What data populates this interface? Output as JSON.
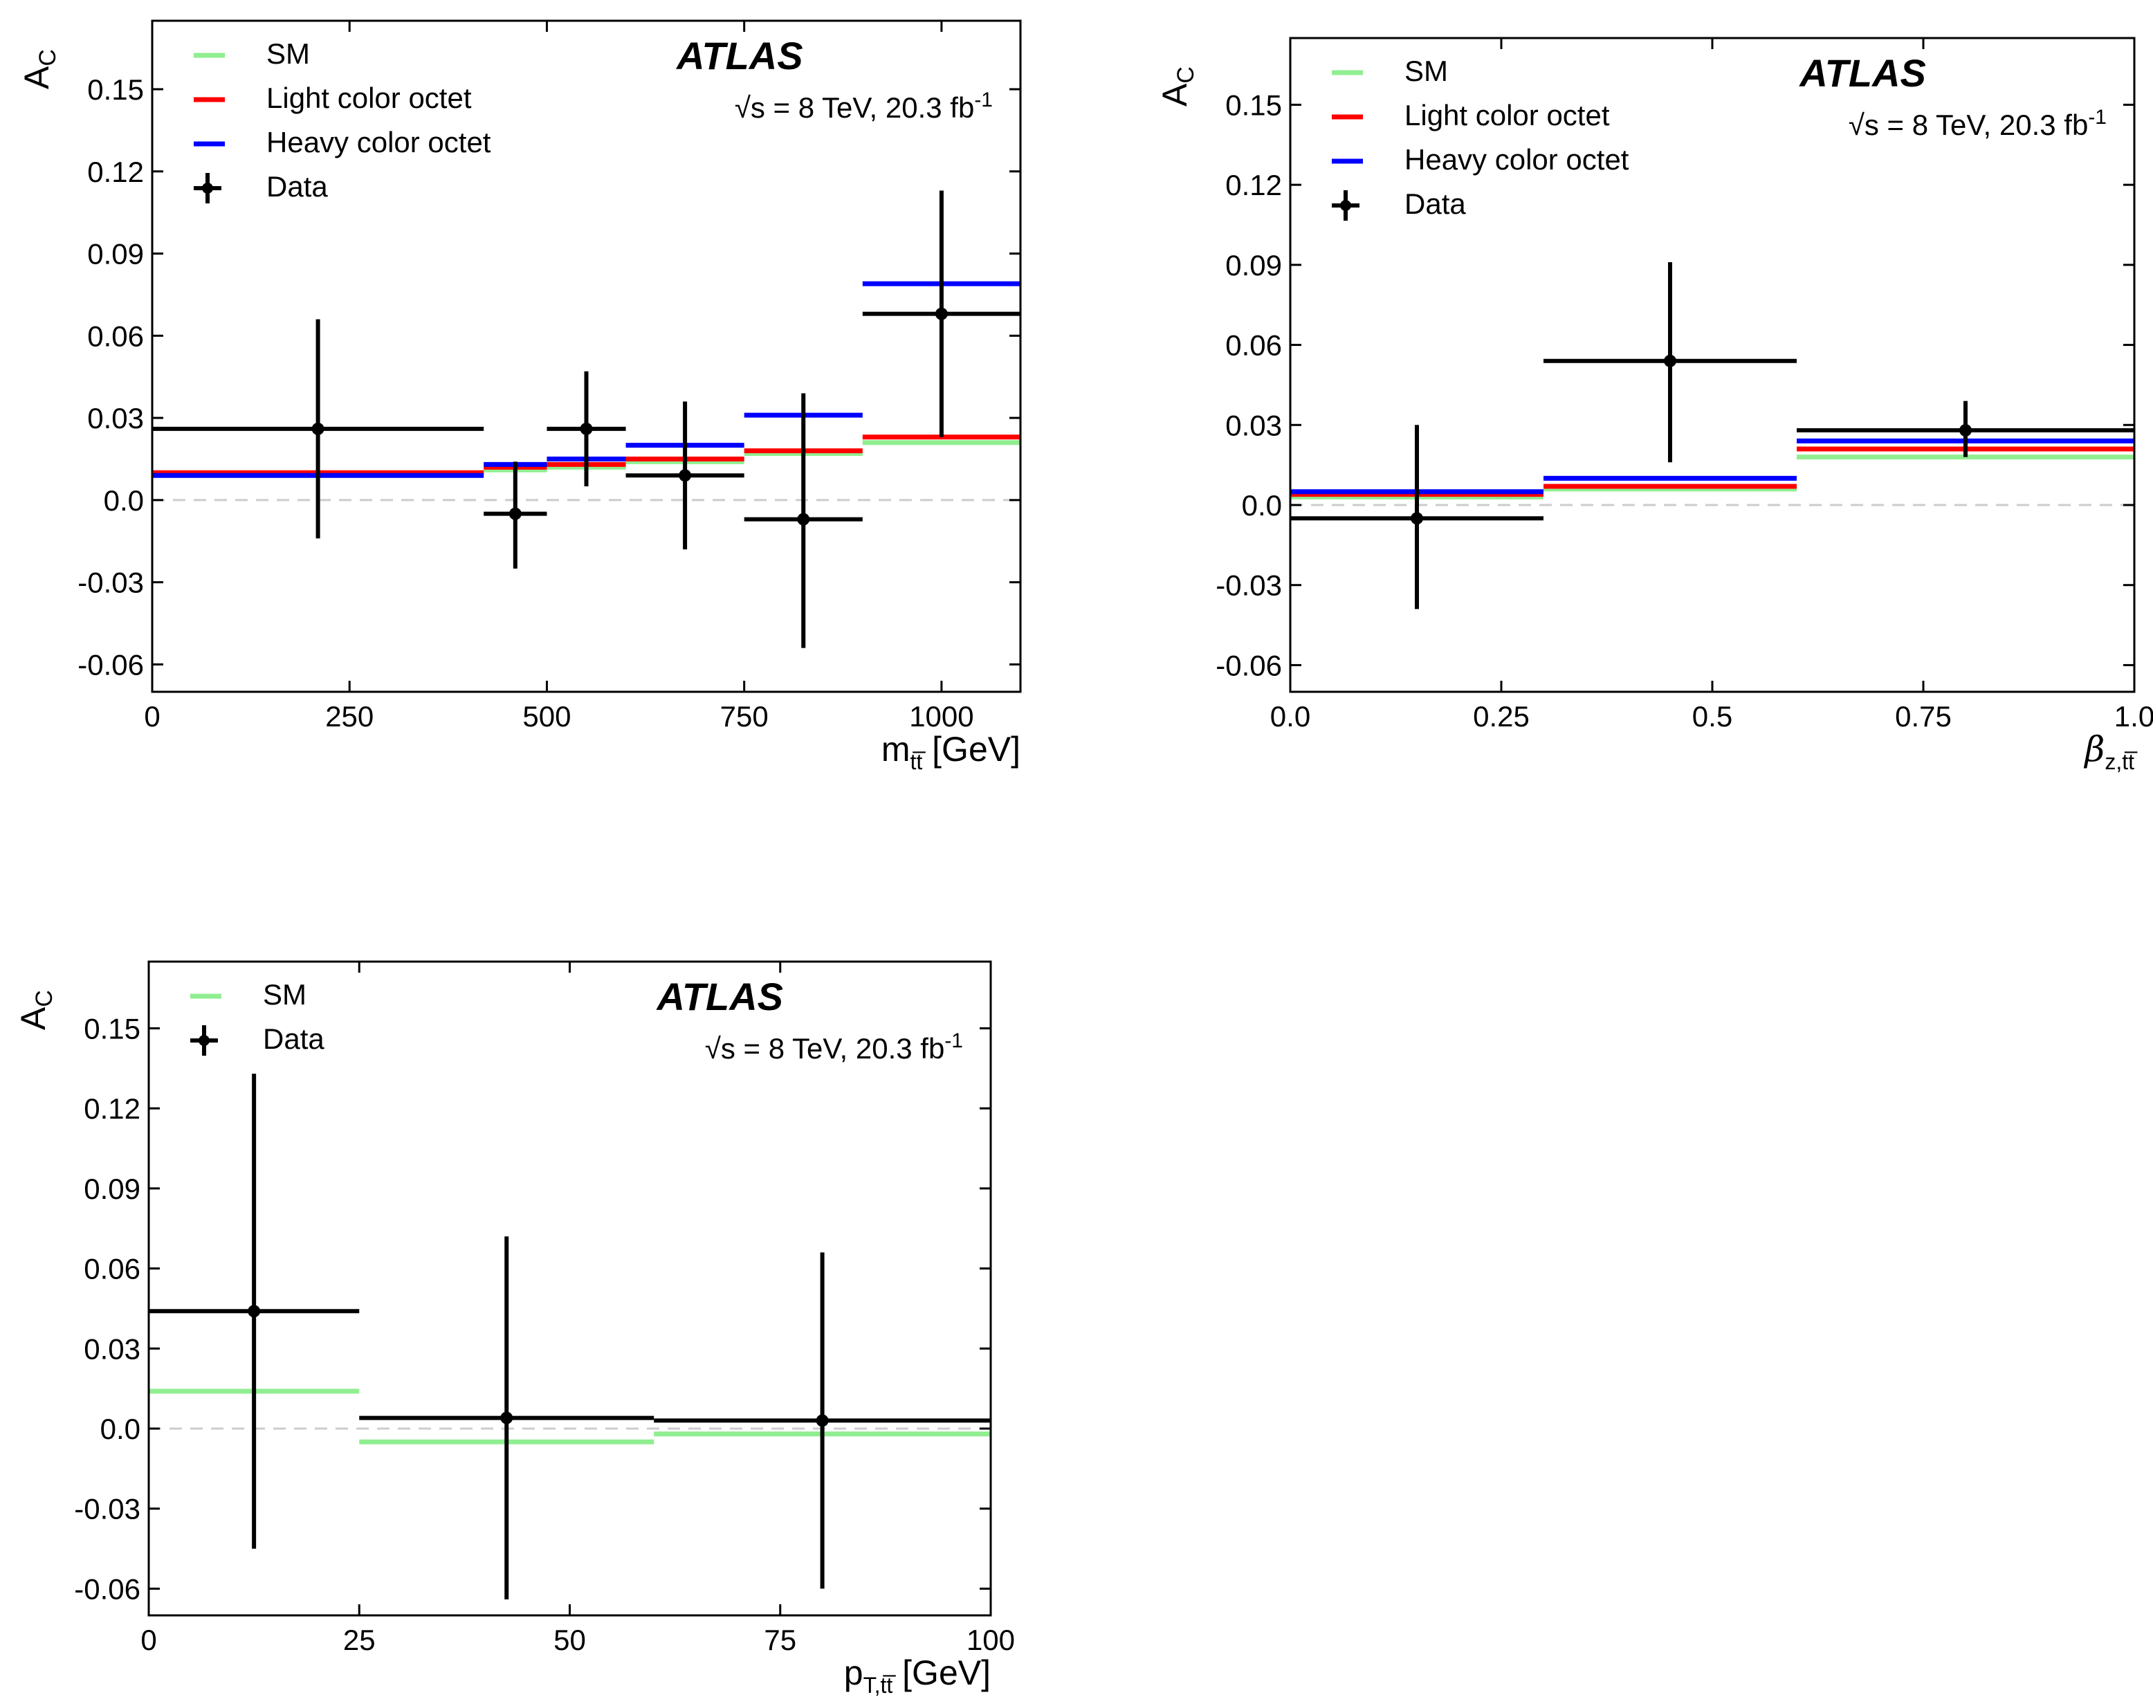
{
  "colors": {
    "SM": "#90ee90",
    "Light color octet": "#ff0000",
    "Heavy color octet": "#0000ff",
    "Data": "#000000",
    "zero_line": "#cccccc"
  },
  "chart_data": [
    {
      "type": "step",
      "title": "",
      "experiment_label": "ATLAS",
      "energy_label": "√s = 8 TeV, 20.3 fb⁻¹",
      "ylabel": "A_C",
      "xlabel": "m_tt̄ [GeV]",
      "xlim": [
        0,
        1100
      ],
      "ylim": [
        -0.07,
        0.175
      ],
      "xticks": [
        0,
        250,
        500,
        750,
        1000
      ],
      "xtick_labels": [
        "0",
        "250",
        "500",
        "750",
        "1000"
      ],
      "yticks": [
        -0.06,
        -0.03,
        0.0,
        0.03,
        0.06,
        0.09,
        0.12,
        0.15
      ],
      "ytick_labels": [
        "-0.06",
        "-0.03",
        "0.0",
        "0.03",
        "0.06",
        "0.09",
        "0.12",
        "0.15"
      ],
      "legend_position": "top-left",
      "legend": [
        "SM",
        "Light color octet",
        "Heavy color octet",
        "Data"
      ],
      "bins": [
        [
          0,
          420
        ],
        [
          420,
          500
        ],
        [
          500,
          600
        ],
        [
          600,
          750
        ],
        [
          750,
          900
        ],
        [
          900,
          1100
        ]
      ],
      "series": [
        {
          "name": "SM",
          "values": [
            0.009,
            0.011,
            0.012,
            0.014,
            0.017,
            0.021
          ]
        },
        {
          "name": "Light color octet",
          "values": [
            0.01,
            0.012,
            0.013,
            0.015,
            0.018,
            0.023
          ]
        },
        {
          "name": "Heavy color octet",
          "values": [
            0.009,
            0.013,
            0.015,
            0.02,
            0.031,
            0.079
          ]
        }
      ],
      "data_points": [
        {
          "x": 210,
          "xlo": 0,
          "xhi": 420,
          "y": 0.026,
          "ylo": -0.014,
          "yhi": 0.066
        },
        {
          "x": 460,
          "xlo": 420,
          "xhi": 500,
          "y": -0.005,
          "ylo": -0.025,
          "yhi": 0.014
        },
        {
          "x": 550,
          "xlo": 500,
          "xhi": 600,
          "y": 0.026,
          "ylo": 0.005,
          "yhi": 0.047
        },
        {
          "x": 675,
          "xlo": 600,
          "xhi": 750,
          "y": 0.009,
          "ylo": -0.018,
          "yhi": 0.036
        },
        {
          "x": 825,
          "xlo": 750,
          "xhi": 900,
          "y": -0.007,
          "ylo": -0.054,
          "yhi": 0.039
        },
        {
          "x": 1000,
          "xlo": 900,
          "xhi": 1100,
          "y": 0.068,
          "ylo": 0.023,
          "yhi": 0.113
        }
      ]
    },
    {
      "type": "step",
      "title": "",
      "experiment_label": "ATLAS",
      "energy_label": "√s = 8 TeV, 20.3 fb⁻¹",
      "ylabel": "A_C",
      "xlabel": "β_z,tt̄",
      "xlim": [
        0,
        1.0
      ],
      "ylim": [
        -0.07,
        0.175
      ],
      "xticks": [
        0,
        0.25,
        0.5,
        0.75,
        1.0
      ],
      "xtick_labels": [
        "0.0",
        "0.25",
        "0.5",
        "0.75",
        "1.0"
      ],
      "yticks": [
        -0.06,
        -0.03,
        0.0,
        0.03,
        0.06,
        0.09,
        0.12,
        0.15
      ],
      "ytick_labels": [
        "-0.06",
        "-0.03",
        "0.0",
        "0.03",
        "0.06",
        "0.09",
        "0.12",
        "0.15"
      ],
      "legend_position": "top-left",
      "legend": [
        "SM",
        "Light color octet",
        "Heavy color octet",
        "Data"
      ],
      "bins": [
        [
          0,
          0.3
        ],
        [
          0.3,
          0.6
        ],
        [
          0.6,
          1.0
        ]
      ],
      "series": [
        {
          "name": "SM",
          "values": [
            0.003,
            0.006,
            0.018
          ]
        },
        {
          "name": "Light color octet",
          "values": [
            0.004,
            0.007,
            0.021
          ]
        },
        {
          "name": "Heavy color octet",
          "values": [
            0.005,
            0.01,
            0.024
          ]
        }
      ],
      "data_points": [
        {
          "x": 0.15,
          "xlo": 0,
          "xhi": 0.3,
          "y": -0.005,
          "ylo": -0.039,
          "yhi": 0.03
        },
        {
          "x": 0.45,
          "xlo": 0.3,
          "xhi": 0.6,
          "y": 0.054,
          "ylo": 0.016,
          "yhi": 0.091
        },
        {
          "x": 0.8,
          "xlo": 0.6,
          "xhi": 1.0,
          "y": 0.028,
          "ylo": 0.018,
          "yhi": 0.039
        }
      ]
    },
    {
      "type": "step",
      "title": "",
      "experiment_label": "ATLAS",
      "energy_label": "√s = 8 TeV, 20.3 fb⁻¹",
      "ylabel": "A_C",
      "xlabel": "p_T,tt̄ [GeV]",
      "xlim": [
        0,
        100
      ],
      "ylim": [
        -0.07,
        0.175
      ],
      "xticks": [
        0,
        25,
        50,
        75,
        100
      ],
      "xtick_labels": [
        "0",
        "25",
        "50",
        "75",
        "100"
      ],
      "yticks": [
        -0.06,
        -0.03,
        0.0,
        0.03,
        0.06,
        0.09,
        0.12,
        0.15
      ],
      "ytick_labels": [
        "-0.06",
        "-0.03",
        "0.0",
        "0.03",
        "0.06",
        "0.09",
        "0.12",
        "0.15"
      ],
      "legend_position": "top-left",
      "legend": [
        "SM",
        "Data"
      ],
      "bins": [
        [
          0,
          25
        ],
        [
          25,
          60
        ],
        [
          60,
          100
        ]
      ],
      "series": [
        {
          "name": "SM",
          "values": [
            0.014,
            -0.005,
            -0.002
          ]
        }
      ],
      "data_points": [
        {
          "x": 12.5,
          "xlo": 0,
          "xhi": 25,
          "y": 0.044,
          "ylo": -0.045,
          "yhi": 0.133
        },
        {
          "x": 42.5,
          "xlo": 25,
          "xhi": 60,
          "y": 0.004,
          "ylo": -0.064,
          "yhi": 0.072
        },
        {
          "x": 80,
          "xlo": 60,
          "xhi": 100,
          "y": 0.003,
          "ylo": -0.06,
          "yhi": 0.066
        }
      ]
    }
  ]
}
